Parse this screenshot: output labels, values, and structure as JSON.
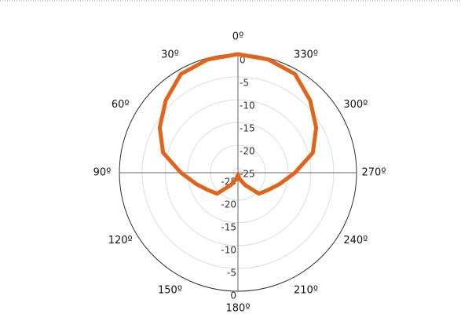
{
  "chart_data": {
    "type": "polar",
    "theta": [
      0,
      15,
      30,
      45,
      60,
      75,
      90,
      105,
      120,
      135,
      150,
      165,
      180,
      195,
      210,
      225,
      240,
      255,
      270,
      285,
      300,
      315,
      330,
      345
    ],
    "series": [
      {
        "color": "#e2641a",
        "values": [
          0,
          -0.3,
          -1,
          -3.6,
          -6.2,
          -9,
          -13.5,
          -16.5,
          -18.4,
          -19.5,
          -22.9,
          -24.6,
          -25.5,
          -24.6,
          -22.9,
          -19.5,
          -18.4,
          -16.5,
          -13.5,
          -9,
          -6.2,
          -3.6,
          -1,
          -0.3
        ]
      }
    ],
    "rlim": [
      -26,
      0
    ],
    "rticks": [
      -25,
      -20,
      -15,
      -10,
      -5,
      0
    ],
    "thetaticks": [
      {
        "value": 0,
        "label": "0º"
      },
      {
        "value": 30,
        "label": "30º"
      },
      {
        "value": 60,
        "label": "60º"
      },
      {
        "value": 90,
        "label": "90º"
      },
      {
        "value": 120,
        "label": "120º"
      },
      {
        "value": 150,
        "label": "150º"
      },
      {
        "value": 180,
        "label": "180º"
      },
      {
        "value": 210,
        "label": "210º"
      },
      {
        "value": 240,
        "label": "240º"
      },
      {
        "value": 270,
        "label": "270º"
      },
      {
        "value": 300,
        "label": "300º"
      },
      {
        "value": 330,
        "label": "330º"
      }
    ],
    "direction": "counterclockwise",
    "grid": true
  }
}
